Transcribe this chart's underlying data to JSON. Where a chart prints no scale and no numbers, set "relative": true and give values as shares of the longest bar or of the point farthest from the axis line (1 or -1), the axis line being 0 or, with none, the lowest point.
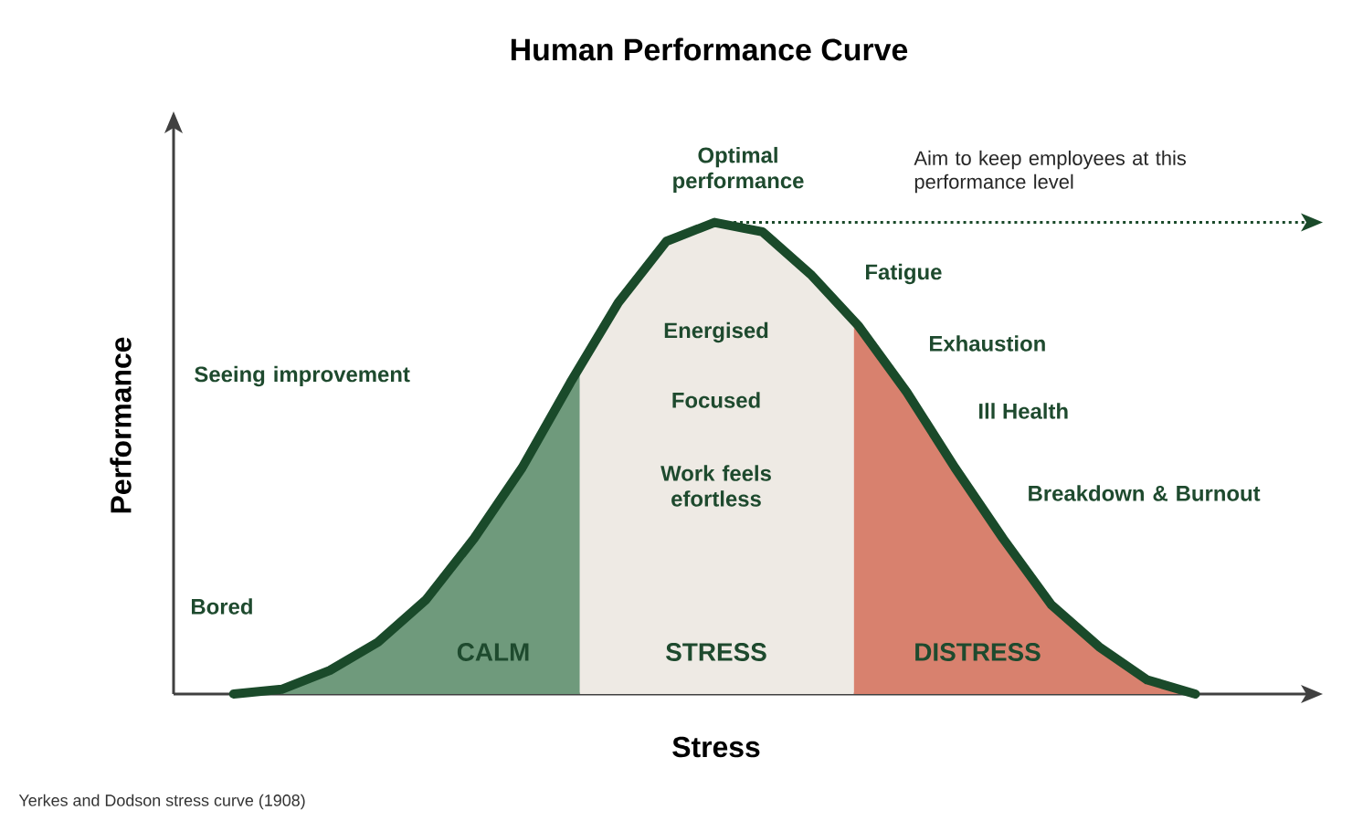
{
  "chart_data": {
    "type": "line",
    "title": "Human Performance Curve",
    "xlabel": "Stress",
    "ylabel": "Performance",
    "relative": true,
    "marker": "none",
    "line_style": "solid",
    "categories": [
      null,
      null,
      null,
      null,
      null,
      null,
      null,
      null,
      null,
      null,
      null,
      null,
      null,
      null,
      null,
      null,
      null,
      null,
      null,
      null,
      null
    ],
    "series": [
      {
        "color": "#1a4a2a",
        "values": [
          0,
          0.01,
          0.05,
          0.11,
          0.2,
          0.33,
          0.48,
          0.66,
          0.83,
          0.96,
          1.0,
          0.98,
          0.89,
          0.78,
          0.64,
          0.48,
          0.33,
          0.19,
          0.1,
          0.03,
          0
        ]
      }
    ],
    "ref_lines": [
      {
        "axis": "y",
        "value": 1.0,
        "label": "Aim to keep employees at this performance level",
        "color": "#1a4a2a",
        "line_style": "dotted"
      }
    ],
    "annotations": [
      "Optimal performance",
      "Seeing improvement",
      "Bored",
      "Energised",
      "Focused",
      "Work feels efortless",
      "Fatigue",
      "Exhaustion",
      "Ill Health",
      "Breakdown & Burnout",
      "CALM",
      "STRESS",
      "DISTRESS",
      "Yerkes and Dodson stress curve (1908)"
    ]
  }
}
